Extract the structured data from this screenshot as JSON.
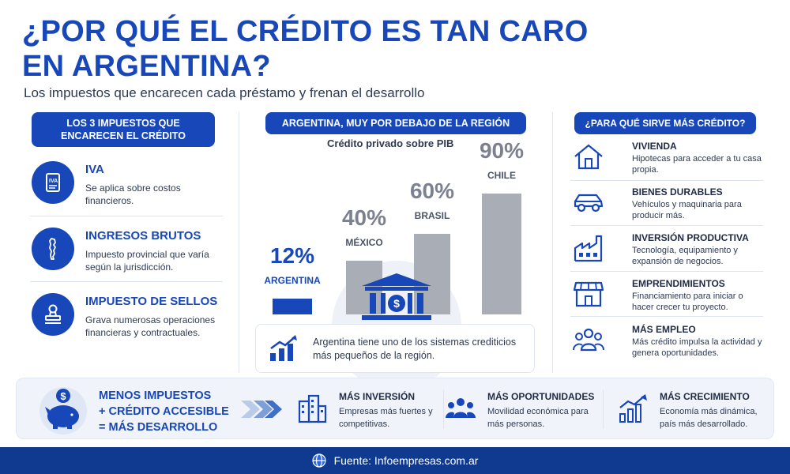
{
  "header": {
    "title_line1": "¿POR QUÉ EL CRÉDITO ES TAN CARO",
    "title_line2": "EN ARGENTINA?",
    "subtitle": "Los impuestos que encarecen cada préstamo y frenan el desarrollo"
  },
  "taxes": {
    "heading_line1": "LOS 3 IMPUESTOS QUE",
    "heading_line2": "ENCARECEN EL CRÉDITO",
    "items": [
      {
        "title": "IVA",
        "desc": "Se aplica sobre costos financieros.",
        "icon": "document-iva-icon"
      },
      {
        "title": "INGRESOS BRUTOS",
        "desc": "Impuesto provincial que varía según la jurisdicción.",
        "icon": "argentina-map-icon"
      },
      {
        "title": "IMPUESTO DE SELLOS",
        "desc": "Grava numerosas operaciones financieras y contractuales.",
        "icon": "stamp-icon"
      }
    ]
  },
  "region": {
    "heading": "ARGENTINA, MUY POR DEBAJO DE LA REGIÓN",
    "note": "Argentina tiene uno de los sistemas crediticios más pequeños de la región."
  },
  "chart_data": {
    "type": "bar",
    "title": "Crédito privado sobre PIB",
    "categories": [
      "ARGENTINA",
      "MÉXICO",
      "BRASIL",
      "CHILE"
    ],
    "values": [
      12,
      40,
      60,
      90
    ],
    "value_labels": [
      "12%",
      "40%",
      "60%",
      "90%"
    ],
    "ylim": [
      0,
      100
    ],
    "colors": [
      "#1747b8",
      "#a8adb6",
      "#a8adb6",
      "#a8adb6"
    ],
    "grid": false
  },
  "uses": {
    "heading": "¿PARA QUÉ SIRVE MÁS CRÉDITO?",
    "items": [
      {
        "title": "VIVIENDA",
        "desc": "Hipotecas para acceder a tu casa propia.",
        "icon": "house-icon"
      },
      {
        "title": "BIENES DURABLES",
        "desc": "Vehículos y maquinaria para producir más.",
        "icon": "car-icon"
      },
      {
        "title": "INVERSIÓN PRODUCTIVA",
        "desc": "Tecnología, equipamiento y expansión de negocios.",
        "icon": "factory-icon"
      },
      {
        "title": "EMPRENDIMIENTOS",
        "desc": "Financiamiento para iniciar o hacer crecer tu proyecto.",
        "icon": "store-icon"
      },
      {
        "title": "MÁS EMPLEO",
        "desc": "Más crédito impulsa la actividad y genera oportunidades.",
        "icon": "people-icon"
      }
    ]
  },
  "summary": {
    "line1": "MENOS IMPUESTOS",
    "line2": "+ CRÉDITO ACCESIBLE",
    "line3": "= MÁS DESARROLLO",
    "benefits": [
      {
        "title": "MÁS INVERSIÓN",
        "desc": "Empresas más fuertes y competitivas.",
        "icon": "buildings-icon"
      },
      {
        "title": "MÁS OPORTUNIDADES",
        "desc": "Movilidad económica para más personas.",
        "icon": "group-icon"
      },
      {
        "title": "MÁS CRECIMIENTO",
        "desc": "Economía más dinámica, país más desarrollado.",
        "icon": "growth-chart-icon"
      }
    ]
  },
  "footer": {
    "source": "Fuente: Infoempresas.com.ar"
  },
  "colors": {
    "accent": "#1747b8",
    "footer_bg": "#0f3a8f",
    "gray_bar": "#a8adb6"
  }
}
